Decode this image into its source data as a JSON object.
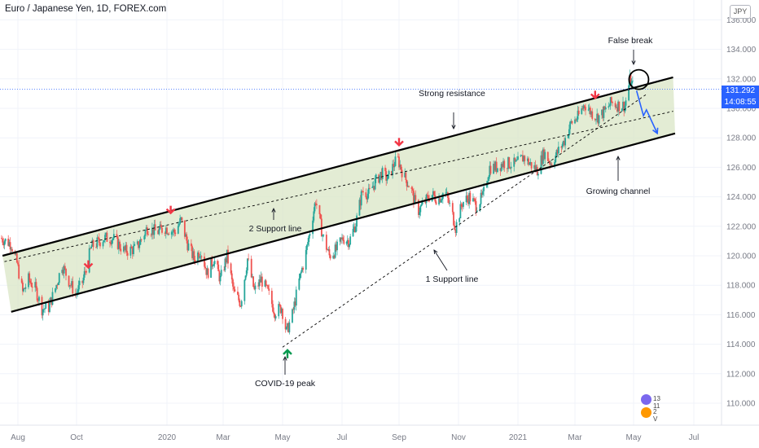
{
  "header": {
    "title": "Euro / Japanese Yen, 1D, FOREX.com",
    "currency": "JPY"
  },
  "price_tag": {
    "price": "131.292",
    "countdown": "14:08:55",
    "color": "#2962ff"
  },
  "annotations": {
    "false_break": "False break",
    "strong_resistance": "Strong resistance",
    "growing_channel": "Growing channel",
    "support_line_2": "2 Support line",
    "support_line_1": "1 Support line",
    "covid_peak": "COVID-19 peak"
  },
  "badges": {
    "top": "13 11",
    "bottom": "2 V"
  },
  "colors": {
    "up_candle": "#26a69a",
    "down_candle": "#ef5350",
    "channel_fill": "#d9e5c5",
    "arrow_down": "#f23645",
    "arrow_up": "#089950",
    "forecast": "#2962ff"
  },
  "chart_data": {
    "type": "candlestick",
    "symbol": "Euro / Japanese Yen",
    "timeframe": "1D",
    "source": "FOREX.com",
    "x_tick_labels": [
      "Aug",
      "Oct",
      "2020",
      "Mar",
      "May",
      "Jul",
      "Sep",
      "Nov",
      "2021",
      "Mar",
      "May",
      "Jul"
    ],
    "y_tick_labels": [
      "110.000",
      "112.000",
      "114.000",
      "116.000",
      "118.000",
      "120.000",
      "122.000",
      "124.000",
      "126.000",
      "128.000",
      "130.000",
      "132.000",
      "134.000",
      "136.000"
    ],
    "ylim": [
      109,
      137
    ],
    "last_price": 131.292,
    "price_path": [
      {
        "date": "2019-07-15",
        "close": 121.2
      },
      {
        "date": "2019-07-26",
        "close": 120.8
      },
      {
        "date": "2019-08-01",
        "close": 119.5
      },
      {
        "date": "2019-08-07",
        "close": 117.5
      },
      {
        "date": "2019-08-13",
        "close": 118.4
      },
      {
        "date": "2019-08-20",
        "close": 117.8
      },
      {
        "date": "2019-08-27",
        "close": 116.4
      },
      {
        "date": "2019-09-03",
        "close": 116.5
      },
      {
        "date": "2019-09-10",
        "close": 117.8
      },
      {
        "date": "2019-09-17",
        "close": 119.4
      },
      {
        "date": "2019-09-24",
        "close": 118.3
      },
      {
        "date": "2019-10-01",
        "close": 117.4
      },
      {
        "date": "2019-10-08",
        "close": 118.2
      },
      {
        "date": "2019-10-17",
        "close": 120.6
      },
      {
        "date": "2019-10-30",
        "close": 121.2
      },
      {
        "date": "2019-11-08",
        "close": 121.2
      },
      {
        "date": "2019-11-20",
        "close": 120.3
      },
      {
        "date": "2019-12-02",
        "close": 120.5
      },
      {
        "date": "2019-12-13",
        "close": 121.9
      },
      {
        "date": "2019-12-23",
        "close": 121.6
      },
      {
        "date": "2019-12-31",
        "close": 121.9
      },
      {
        "date": "2020-01-10",
        "close": 121.6
      },
      {
        "date": "2020-01-17",
        "close": 122.4
      },
      {
        "date": "2020-01-24",
        "close": 120.8
      },
      {
        "date": "2020-01-31",
        "close": 119.8
      },
      {
        "date": "2020-02-07",
        "close": 120.4
      },
      {
        "date": "2020-02-14",
        "close": 118.8
      },
      {
        "date": "2020-02-21",
        "close": 119.8
      },
      {
        "date": "2020-02-28",
        "close": 118.4
      },
      {
        "date": "2020-03-06",
        "close": 120.0
      },
      {
        "date": "2020-03-13",
        "close": 117.5
      },
      {
        "date": "2020-03-20",
        "close": 116.8
      },
      {
        "date": "2020-03-27",
        "close": 119.8
      },
      {
        "date": "2020-04-03",
        "close": 117.6
      },
      {
        "date": "2020-04-10",
        "close": 118.4
      },
      {
        "date": "2020-04-17",
        "close": 117.5
      },
      {
        "date": "2020-04-24",
        "close": 116.2
      },
      {
        "date": "2020-05-01",
        "close": 116.5
      },
      {
        "date": "2020-05-06",
        "close": 114.8
      },
      {
        "date": "2020-05-12",
        "close": 116.0
      },
      {
        "date": "2020-05-19",
        "close": 118.3
      },
      {
        "date": "2020-05-26",
        "close": 120.2
      },
      {
        "date": "2020-06-01",
        "close": 122.4
      },
      {
        "date": "2020-06-05",
        "close": 123.8
      },
      {
        "date": "2020-06-12",
        "close": 121.4
      },
      {
        "date": "2020-06-19",
        "close": 120.0
      },
      {
        "date": "2020-06-26",
        "close": 120.4
      },
      {
        "date": "2020-07-03",
        "close": 121.2
      },
      {
        "date": "2020-07-10",
        "close": 121.0
      },
      {
        "date": "2020-07-17",
        "close": 122.2
      },
      {
        "date": "2020-07-24",
        "close": 124.4
      },
      {
        "date": "2020-07-31",
        "close": 124.2
      },
      {
        "date": "2020-08-07",
        "close": 125.0
      },
      {
        "date": "2020-08-14",
        "close": 125.6
      },
      {
        "date": "2020-08-21",
        "close": 125.2
      },
      {
        "date": "2020-08-28",
        "close": 126.3
      },
      {
        "date": "2020-09-01",
        "close": 126.5
      },
      {
        "date": "2020-09-07",
        "close": 125.4
      },
      {
        "date": "2020-09-14",
        "close": 124.6
      },
      {
        "date": "2020-09-21",
        "close": 123.0
      },
      {
        "date": "2020-09-28",
        "close": 123.6
      },
      {
        "date": "2020-10-05",
        "close": 124.2
      },
      {
        "date": "2020-10-12",
        "close": 123.8
      },
      {
        "date": "2020-10-19",
        "close": 124.4
      },
      {
        "date": "2020-10-26",
        "close": 123.0
      },
      {
        "date": "2020-10-30",
        "close": 121.9
      },
      {
        "date": "2020-11-06",
        "close": 123.6
      },
      {
        "date": "2020-11-13",
        "close": 124.0
      },
      {
        "date": "2020-11-20",
        "close": 123.4
      },
      {
        "date": "2020-11-27",
        "close": 124.0
      },
      {
        "date": "2020-12-04",
        "close": 126.0
      },
      {
        "date": "2020-12-11",
        "close": 126.0
      },
      {
        "date": "2020-12-18",
        "close": 126.3
      },
      {
        "date": "2020-12-31",
        "close": 126.2
      },
      {
        "date": "2021-01-08",
        "close": 126.7
      },
      {
        "date": "2021-01-15",
        "close": 126.2
      },
      {
        "date": "2021-01-22",
        "close": 125.8
      },
      {
        "date": "2021-01-29",
        "close": 127.0
      },
      {
        "date": "2021-02-05",
        "close": 126.3
      },
      {
        "date": "2021-02-12",
        "close": 127.0
      },
      {
        "date": "2021-02-19",
        "close": 127.8
      },
      {
        "date": "2021-02-26",
        "close": 129.0
      },
      {
        "date": "2021-03-05",
        "close": 129.4
      },
      {
        "date": "2021-03-12",
        "close": 130.3
      },
      {
        "date": "2021-03-19",
        "close": 129.7
      },
      {
        "date": "2021-03-26",
        "close": 129.4
      },
      {
        "date": "2021-04-02",
        "close": 129.8
      },
      {
        "date": "2021-04-09",
        "close": 130.4
      },
      {
        "date": "2021-04-16",
        "close": 130.2
      },
      {
        "date": "2021-04-23",
        "close": 130.2
      },
      {
        "date": "2021-04-28",
        "close": 131.9
      },
      {
        "date": "2021-05-03",
        "close": 131.292
      }
    ],
    "lines": [
      {
        "name": "Strong resistance",
        "style": "solid",
        "points": [
          [
            "2019-07-16",
            120.0
          ],
          [
            "2021-06-10",
            132.1
          ]
        ]
      },
      {
        "name": "Growing channel",
        "style": "solid",
        "points": [
          [
            "2019-07-25",
            116.2
          ],
          [
            "2021-06-12",
            128.3
          ]
        ]
      },
      {
        "name": "2 Support line",
        "style": "dashed",
        "points": [
          [
            "2019-07-18",
            119.6
          ],
          [
            "2021-06-10",
            129.8
          ]
        ]
      },
      {
        "name": "1 Support line",
        "style": "dashed",
        "points": [
          [
            "2020-05-01",
            113.8
          ],
          [
            "2021-05-15",
            131.0
          ]
        ]
      }
    ],
    "down_arrow_dates": [
      "2019-10-13",
      "2020-01-05",
      "2020-09-01",
      "2021-03-22"
    ],
    "up_arrow_dates": [
      "2020-05-06"
    ],
    "forecast_path": [
      [
        "2021-05-04",
        131.2
      ],
      [
        "2021-05-11",
        129.5
      ],
      [
        "2021-05-14",
        129.9
      ],
      [
        "2021-05-25",
        128.3
      ]
    ],
    "circle_highlight": {
      "date": "2021-05-03",
      "price": 131.9
    }
  }
}
